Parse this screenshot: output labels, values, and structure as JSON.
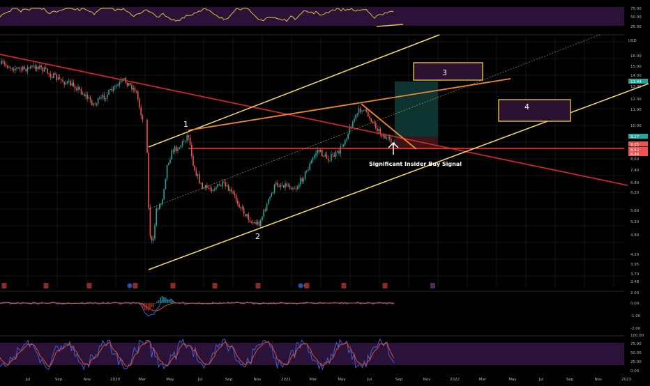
{
  "colors": {
    "background": "#000000",
    "grid": "#161616",
    "price_up": "#26a69a",
    "price_down": "#ef5350",
    "channel": "#f5dd6b",
    "trend_red": "#e0262b",
    "orange": "#f0892a",
    "support": "#ff3a2a",
    "rsi": "#e1c33a",
    "stoch_k": "#3f62d6",
    "stoch_d": "#e0512e",
    "band": "#2a1238",
    "box_border": "#f2d13a",
    "box_fill": "#2a1230",
    "target_zone": "#0f3a36",
    "stop_zone": "#3a1416"
  },
  "chart_data": {
    "type": "candlestick",
    "title": "",
    "price_axis": {
      "currency": "USD",
      "ticks": [
        "16.00",
        "15.00",
        "14.00",
        "13.00",
        "12.00",
        "11.00",
        "10.00",
        "9.25",
        "8.60",
        "7.40",
        "6.80",
        "6.20",
        "5.60",
        "5.20",
        "4.80",
        "4.20",
        "3.95",
        "3.70",
        "3.48"
      ],
      "badges": [
        {
          "label": "13.44",
          "color": "#26a69a"
        },
        {
          "label": "9.27",
          "color": "#26a69a"
        },
        {
          "label": "9.25",
          "color": "#ef5350"
        },
        {
          "label": "8.52",
          "color": "#ef5350"
        },
        {
          "label": "8.46",
          "color": "#ef5350"
        }
      ]
    },
    "time_axis": [
      "Jul",
      "Sep",
      "Nov",
      "2020",
      "Mar",
      "May",
      "Jul",
      "Sep",
      "Nov",
      "2021",
      "Mar",
      "May",
      "Jul",
      "Sep",
      "Nov",
      "2022",
      "Mar",
      "May",
      "Jul",
      "Sep",
      "Nov",
      "2023"
    ],
    "annotations": {
      "wave_labels": [
        "1",
        "2",
        "3",
        "4"
      ],
      "signal_text": "Significant Insider Buy Signal"
    },
    "event_markers": [
      "E",
      "E",
      "E",
      "DE",
      "E",
      "E",
      "E",
      "E",
      "DE",
      "E",
      "E",
      "E"
    ],
    "rsi_panel": {
      "ticks": [
        "75.00",
        "50.00",
        "25.00"
      ]
    },
    "macd_panel": {
      "ticks": [
        "2.00",
        "0.00",
        "-1.00",
        "-2.00"
      ]
    },
    "stoch_panel": {
      "ticks": [
        "100.00",
        "75.00",
        "50.00",
        "25.00",
        "0.00"
      ]
    }
  }
}
